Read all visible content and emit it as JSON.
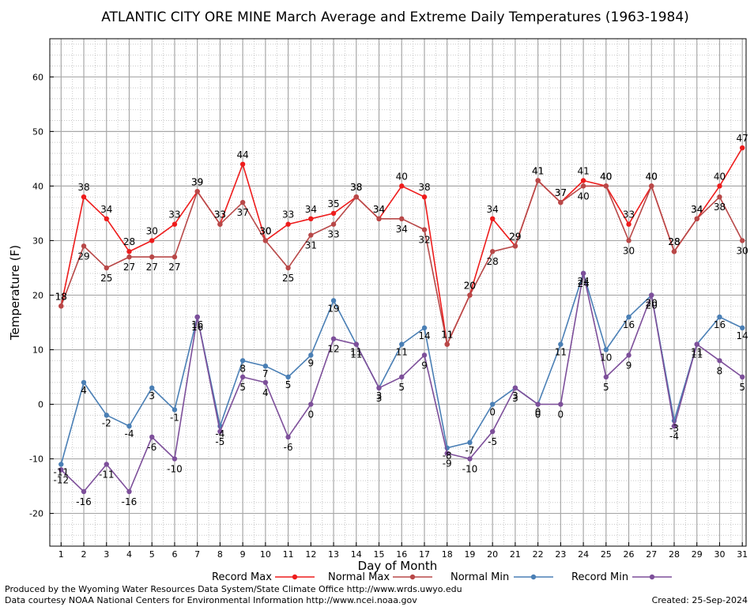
{
  "chart_data": {
    "type": "line",
    "title": "ATLANTIC CITY ORE MINE March Average and Extreme Daily Temperatures (1963-1984)",
    "xlabel": "Day of Month",
    "ylabel": "Temperature (F)",
    "x": [
      1,
      2,
      3,
      4,
      5,
      6,
      7,
      8,
      9,
      10,
      11,
      12,
      13,
      14,
      15,
      16,
      17,
      18,
      19,
      20,
      21,
      22,
      23,
      24,
      25,
      26,
      27,
      28,
      29,
      30,
      31
    ],
    "ylim": [
      -26,
      67
    ],
    "yticks": [
      -20,
      -10,
      0,
      10,
      20,
      30,
      40,
      50,
      60
    ],
    "grid": true,
    "legend_position": "bottom",
    "series": [
      {
        "name": "Record Max",
        "color": "#ee1c1c",
        "values": [
          18,
          38,
          34,
          28,
          30,
          33,
          39,
          33,
          44,
          30,
          33,
          34,
          35,
          38,
          34,
          40,
          38,
          11,
          20,
          34,
          29,
          41,
          37,
          41,
          40,
          33,
          40,
          28,
          34,
          40,
          47
        ]
      },
      {
        "name": "Normal Max",
        "color": "#b84848",
        "values": [
          18,
          29,
          25,
          27,
          27,
          27,
          39,
          33,
          37,
          30,
          25,
          31,
          33,
          38,
          34,
          34,
          32,
          11,
          20,
          28,
          29,
          41,
          37,
          40,
          40,
          30,
          40,
          28,
          34,
          38,
          30
        ]
      },
      {
        "name": "Normal Min",
        "color": "#4a7fb5",
        "values": [
          -11,
          4,
          -2,
          -4,
          3,
          -1,
          16,
          -4,
          8,
          7,
          5,
          9,
          19,
          11,
          3,
          11,
          14,
          -8,
          -7,
          0,
          3,
          0,
          11,
          24,
          10,
          16,
          20,
          -3,
          11,
          16,
          14
        ]
      },
      {
        "name": "Record Min",
        "color": "#7d4f9a",
        "values": [
          -12,
          -16,
          -11,
          -16,
          -6,
          -10,
          16,
          -5,
          5,
          4,
          -6,
          0,
          12,
          11,
          3,
          5,
          9,
          -9,
          -10,
          -5,
          3,
          0,
          0,
          24,
          5,
          9,
          20,
          -4,
          11,
          8,
          5
        ]
      }
    ]
  },
  "footer": {
    "producer": "Produced by the Wyoming Water Resources Data System/State Climate Office http://www.wrds.uwyo.edu",
    "courtesy": "Data courtesy NOAA National Centers for Environmental Information http://www.ncei.noaa.gov",
    "created": "Created:  25-Sep-2024"
  }
}
